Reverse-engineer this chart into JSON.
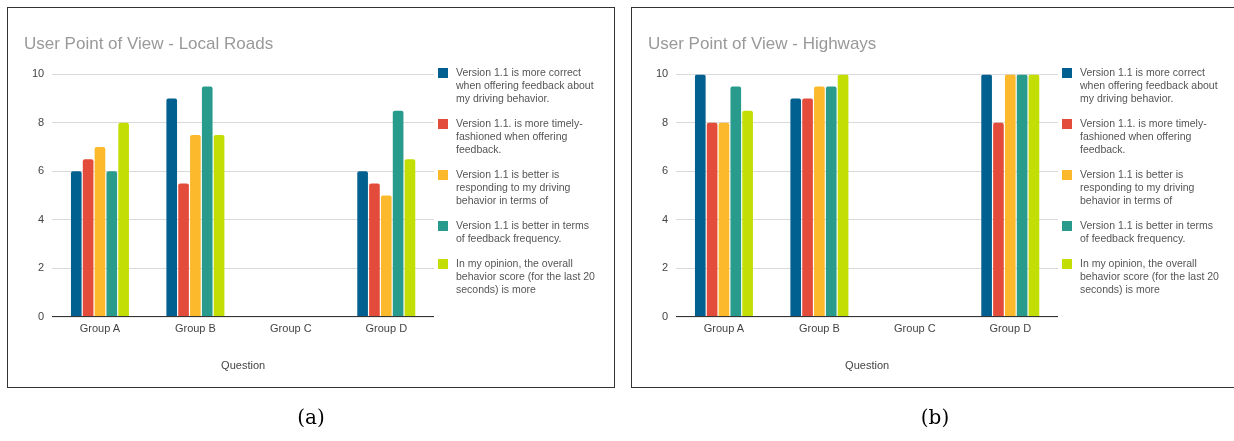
{
  "chart_data": [
    {
      "type": "bar",
      "title": "User Point of View - Local Roads",
      "xlabel": "Question",
      "categories": [
        "Group A",
        "Group B",
        "Group C",
        "Group D"
      ],
      "ylim": [
        0,
        10
      ],
      "yticks": [
        0,
        2,
        4,
        6,
        8,
        10
      ],
      "grid": "y",
      "legend": "right",
      "annotations": [
        "(a)"
      ],
      "series": [
        {
          "name": "Version 1.1 is more correct when offering feedback about my driving behavior.",
          "color": "#01608f",
          "values": [
            6,
            9,
            null,
            6
          ]
        },
        {
          "name": "Version 1.1. is more timely-fashioned when offering feedback.",
          "color": "#e34c3a",
          "values": [
            6.5,
            5.5,
            null,
            5.5
          ]
        },
        {
          "name": "Version 1.1 is better is responding to my driving behavior in terms of",
          "color": "#fbb92b",
          "values": [
            7,
            7.5,
            null,
            5
          ]
        },
        {
          "name": "Version 1.1 is better in terms of feedback frequency.",
          "color": "#299b8c",
          "values": [
            6,
            9.5,
            null,
            8.5
          ]
        },
        {
          "name": "In my opinion, the overall behavior score (for the last 20 seconds) is more",
          "color": "#c3de04",
          "values": [
            8,
            7.5,
            null,
            6.5
          ]
        }
      ]
    },
    {
      "type": "bar",
      "title": "User Point of View - Highways",
      "xlabel": "Question",
      "categories": [
        "Group A",
        "Group B",
        "Group C",
        "Group D"
      ],
      "ylim": [
        0,
        10
      ],
      "yticks": [
        0,
        2,
        4,
        6,
        8,
        10
      ],
      "grid": "y",
      "legend": "right",
      "annotations": [
        "(b)"
      ],
      "series": [
        {
          "name": "Version 1.1 is more correct when offering feedback about my driving behavior.",
          "color": "#01608f",
          "values": [
            10,
            9,
            null,
            10
          ]
        },
        {
          "name": "Version 1.1. is more timely-fashioned when offering feedback.",
          "color": "#e34c3a",
          "values": [
            8,
            9,
            null,
            8
          ]
        },
        {
          "name": "Version 1.1 is better is responding to my driving behavior in terms of",
          "color": "#fbb92b",
          "values": [
            8,
            9.5,
            null,
            10
          ]
        },
        {
          "name": "Version 1.1 is better in terms of feedback frequency.",
          "color": "#299b8c",
          "values": [
            9.5,
            9.5,
            null,
            10
          ]
        },
        {
          "name": "In my opinion, the overall behavior score (for the last 20 seconds) is more",
          "color": "#c3de04",
          "values": [
            8.5,
            10,
            null,
            10
          ]
        }
      ]
    }
  ]
}
